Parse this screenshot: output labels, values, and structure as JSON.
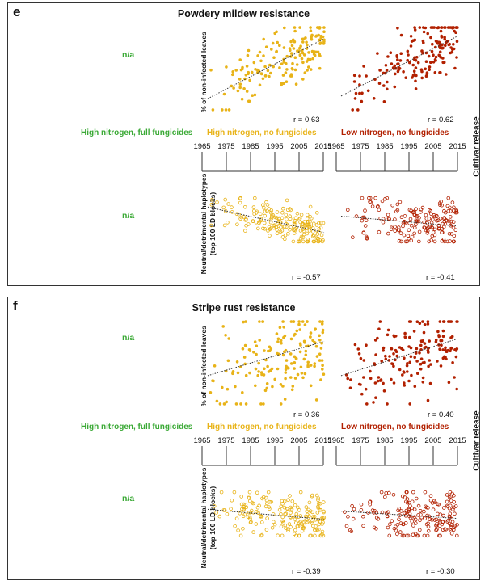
{
  "colors": {
    "yellow": "#e8b318",
    "red": "#b22000",
    "green": "#3aa935",
    "trend": "#333333"
  },
  "panels": [
    {
      "letter": "e",
      "title": "Powdery mildew resistance",
      "na_top": "n/a",
      "na_bottom": "n/a",
      "treatment_full": "High nitrogen, full fungicides",
      "treatment_hn": "High nitrogen, no fungicides",
      "treatment_ln": "Low nitrogen, no fungicides",
      "ylabel_top": "% of non-infected leaves",
      "ylabel_bottom_1": "Neutral/detrimental haplotypes",
      "ylabel_bottom_2": "(top 100 LD blocks)",
      "xaxis_title": "Cultivar release",
      "r_top_hn": "r = 0.63",
      "r_top_ln": "r = 0.62",
      "r_bot_hn": "r = -0.57",
      "r_bot_ln": "r = -0.41",
      "ticks": [
        "1965",
        "1975",
        "1985",
        "1995",
        "2005",
        "2015"
      ]
    },
    {
      "letter": "f",
      "title": "Stripe rust resistance",
      "na_top": "n/a",
      "na_bottom": "n/a",
      "treatment_full": "High nitrogen, full fungicides",
      "treatment_hn": "High nitrogen, no fungicides",
      "treatment_ln": "Low nitrogen, no fungicides",
      "ylabel_top": "% of non-infected leaves",
      "ylabel_bottom_1": "Neutral/detrimental haplotypes",
      "ylabel_bottom_2": "(top 100 LD blocks)",
      "xaxis_title": "Cultivar release",
      "r_top_hn": "r = 0.36",
      "r_top_ln": "r = 0.40",
      "r_bot_hn": "r = -0.39",
      "r_bot_ln": "r = -0.30",
      "ticks": [
        "1965",
        "1975",
        "1985",
        "1995",
        "2005",
        "2015"
      ]
    }
  ],
  "chart_data": [
    {
      "type": "scatter",
      "panel": "e",
      "treatment": "High nitrogen, no fungicides",
      "measure": "% of non-infected leaves",
      "r": 0.63,
      "xlim": [
        1965,
        2015
      ],
      "trend_y": [
        0.15,
        0.85
      ],
      "n_points": 170,
      "filled": true,
      "color": "yellow"
    },
    {
      "type": "scatter",
      "panel": "e",
      "treatment": "Low nitrogen, no fungicides",
      "measure": "% of non-infected leaves",
      "r": 0.62,
      "xlim": [
        1965,
        2015
      ],
      "trend_y": [
        0.18,
        0.88
      ],
      "n_points": 170,
      "filled": true,
      "color": "red"
    },
    {
      "type": "scatter",
      "panel": "e",
      "treatment": "High nitrogen, no fungicides",
      "measure": "Neutral/detrimental haplotypes (top 100 LD blocks)",
      "r": -0.57,
      "xlim": [
        1965,
        2015
      ],
      "trend_y": [
        0.78,
        0.22
      ],
      "n_points": 190,
      "filled": false,
      "color": "yellow"
    },
    {
      "type": "scatter",
      "panel": "e",
      "treatment": "Low nitrogen, no fungicides",
      "measure": "Neutral/detrimental haplotypes (top 100 LD blocks)",
      "r": -0.41,
      "xlim": [
        1965,
        2015
      ],
      "trend_y": [
        0.58,
        0.36
      ],
      "n_points": 180,
      "filled": false,
      "color": "red"
    },
    {
      "type": "scatter",
      "panel": "f",
      "treatment": "High nitrogen, no fungicides",
      "measure": "% of non-infected leaves",
      "r": 0.36,
      "xlim": [
        1965,
        2015
      ],
      "trend_y": [
        0.35,
        0.75
      ],
      "n_points": 170,
      "filled": true,
      "color": "yellow"
    },
    {
      "type": "scatter",
      "panel": "f",
      "treatment": "Low nitrogen, no fungicides",
      "measure": "% of non-infected leaves",
      "r": 0.4,
      "xlim": [
        1965,
        2015
      ],
      "trend_y": [
        0.35,
        0.78
      ],
      "n_points": 170,
      "filled": true,
      "color": "red"
    },
    {
      "type": "scatter",
      "panel": "f",
      "treatment": "High nitrogen, no fungicides",
      "measure": "Neutral/detrimental haplotypes (top 100 LD blocks)",
      "r": -0.39,
      "xlim": [
        1965,
        2015
      ],
      "trend_y": [
        0.6,
        0.38
      ],
      "n_points": 190,
      "filled": false,
      "color": "yellow"
    },
    {
      "type": "scatter",
      "panel": "f",
      "treatment": "Low nitrogen, no fungicides",
      "measure": "Neutral/detrimental haplotypes (top 100 LD blocks)",
      "r": -0.3,
      "xlim": [
        1965,
        2015
      ],
      "trend_y": [
        0.56,
        0.4
      ],
      "n_points": 180,
      "filled": false,
      "color": "red"
    }
  ]
}
